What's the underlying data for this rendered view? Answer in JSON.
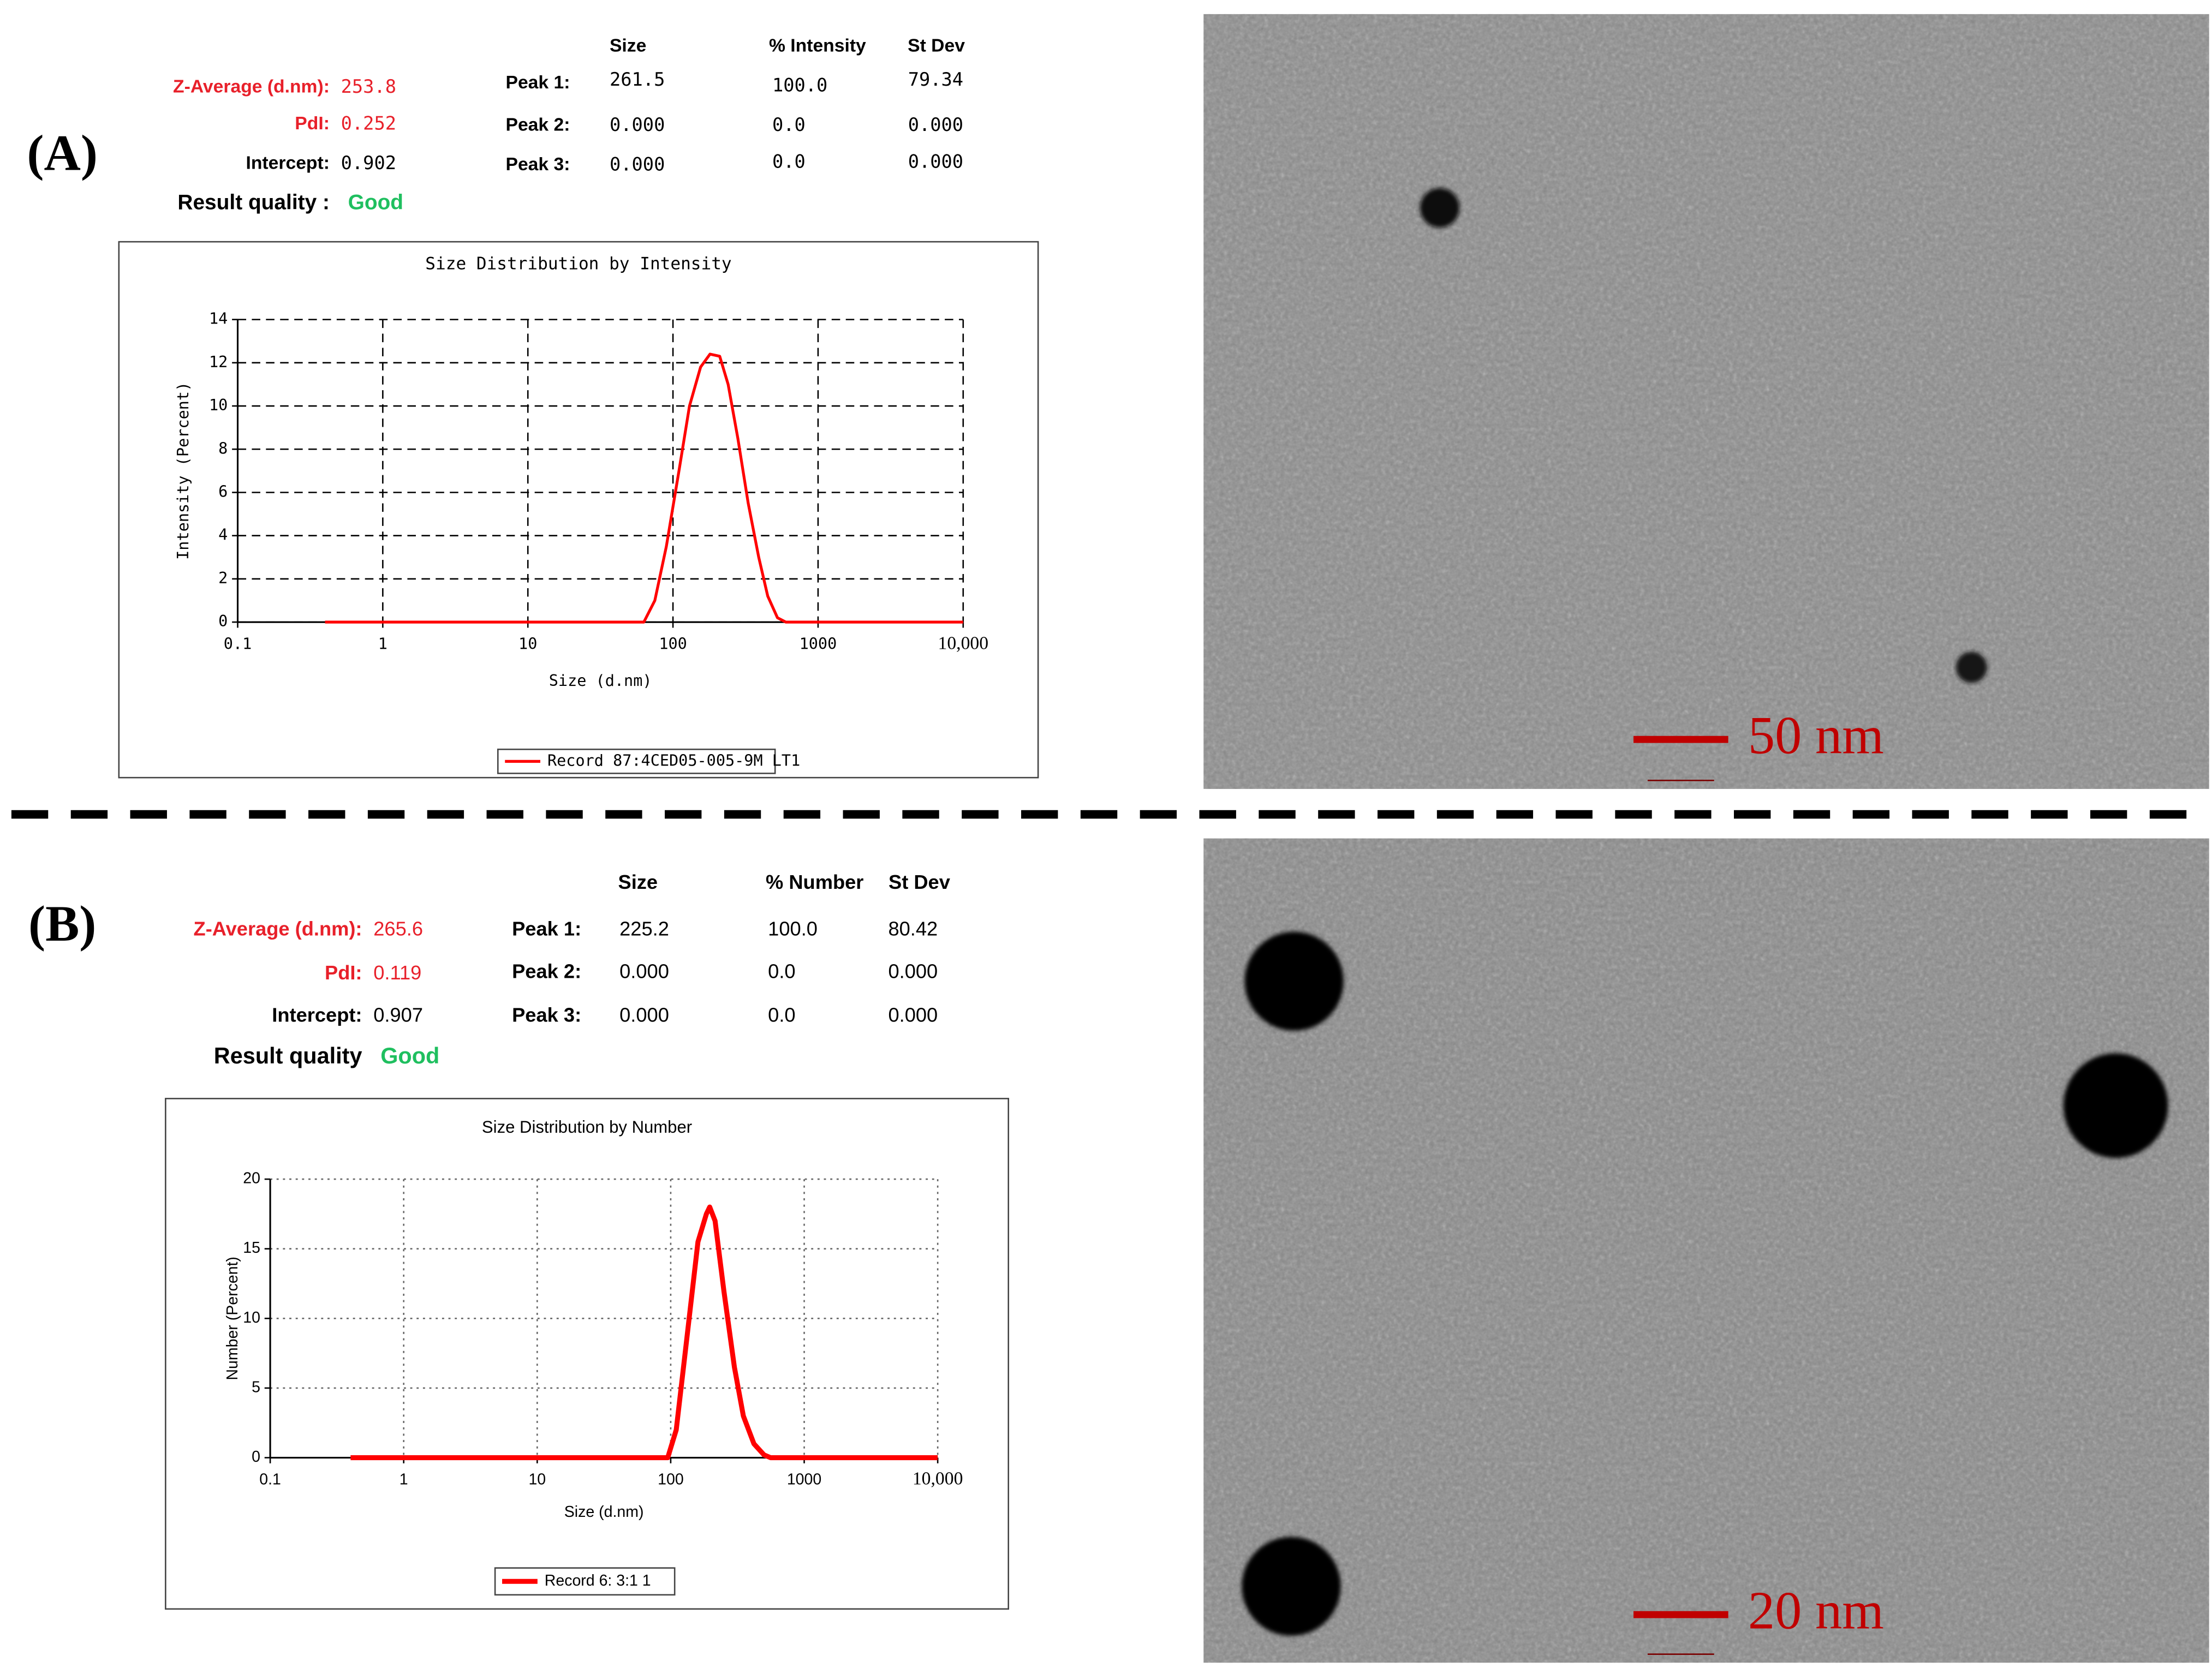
{
  "panels": [
    {
      "label": "(A)",
      "summary": [
        {
          "label": "Z-Average (d.nm):",
          "value": "253.8"
        },
        {
          "label": "PdI:",
          "value": "0.252"
        },
        {
          "label": "Intercept:",
          "value": "0.902"
        },
        {
          "label": "Result quality :",
          "value": "Good"
        }
      ],
      "peak_table": {
        "header": [
          "Size",
          "% Intensity",
          "St Dev"
        ],
        "rows": [
          [
            "Peak 1:",
            "261.5",
            "100.0",
            "79.34"
          ],
          [
            "Peak 2:",
            "0.000",
            "0.0",
            "0.000"
          ],
          [
            "Peak 3:",
            "0.000",
            "0.0",
            "0.000"
          ]
        ]
      },
      "scale_bar": "50 nm"
    },
    {
      "label": "(B)",
      "summary": [
        {
          "label": "Z-Average (d.nm):",
          "value": "265.6"
        },
        {
          "label": "PdI:",
          "value": "0.119"
        },
        {
          "label": "Intercept:",
          "value": "0.907"
        },
        {
          "label": "Result quality",
          "value": "Good"
        }
      ],
      "peak_table": {
        "header": [
          "Size",
          "% Number",
          "St Dev"
        ],
        "rows": [
          [
            "Peak 1:",
            "225.2",
            "100.0",
            "80.42"
          ],
          [
            "Peak 2:",
            "0.000",
            "0.0",
            "0.000"
          ],
          [
            "Peak 3:",
            "0.000",
            "0.0",
            "0.000"
          ]
        ]
      },
      "scale_bar": "20 nm"
    }
  ],
  "chart_data": [
    {
      "type": "line",
      "title": "Size Distribution by Intensity",
      "x_label": "Size (d.nm)",
      "y_label": "Intensity (Percent)",
      "xscale": "log",
      "xlim": [
        0.1,
        10000
      ],
      "xticks": [
        0.1,
        1,
        10,
        100,
        1000,
        {
          "value": 10000,
          "label": "10,000"
        }
      ],
      "ylim": [
        0,
        14
      ],
      "yticks": [
        0,
        2,
        4,
        6,
        8,
        10,
        12,
        14
      ],
      "grid": true,
      "grid_style": "dashed",
      "x": [
        0.4,
        1,
        10,
        50,
        63,
        75,
        90,
        110,
        130,
        155,
        180,
        210,
        240,
        280,
        330,
        390,
        450,
        525,
        600,
        1000,
        10000
      ],
      "series": [
        {
          "name": "Record 87:4CED05-005-9M LT1",
          "color": "#ff0000",
          "values": [
            0,
            0,
            0,
            0,
            0,
            1,
            3.5,
            7,
            10,
            11.8,
            12.4,
            12.3,
            11,
            8.5,
            5.5,
            3,
            1.2,
            0.2,
            0,
            0,
            0
          ]
        }
      ]
    },
    {
      "type": "line",
      "title": "Size Distribution by Number",
      "x_label": "Size (d.nm)",
      "y_label": "Number (Percent)",
      "xscale": "log",
      "xlim": [
        0.1,
        10000
      ],
      "xticks": [
        0.1,
        1,
        10,
        100,
        1000,
        {
          "value": 10000,
          "label": "10,000"
        }
      ],
      "ylim": [
        0,
        20
      ],
      "yticks": [
        0,
        5,
        10,
        15,
        20
      ],
      "grid": true,
      "grid_style": "dotted",
      "x": [
        0.4,
        1,
        10,
        95,
        110,
        130,
        160,
        185,
        196,
        215,
        250,
        300,
        350,
        420,
        500,
        560,
        700,
        1000,
        10000
      ],
      "series": [
        {
          "name": "Record 6: 3:1 1",
          "color": "#ff0000",
          "values": [
            0,
            0,
            0,
            0,
            2,
            8,
            15.5,
            17.5,
            18,
            17,
            12,
            6.5,
            3,
            1,
            0.2,
            0,
            0,
            0,
            0
          ]
        }
      ]
    }
  ]
}
